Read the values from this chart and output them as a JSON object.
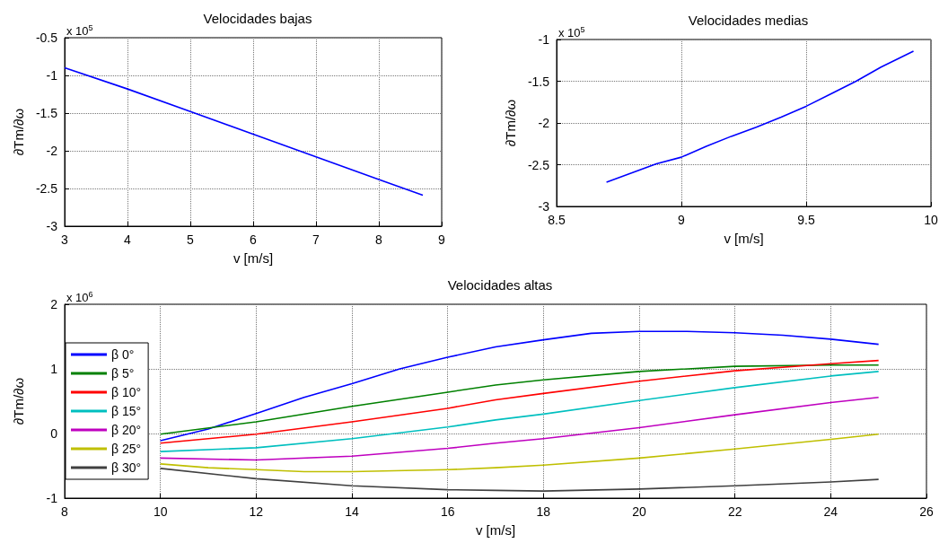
{
  "chart_data": [
    {
      "type": "line",
      "title": "Velocidades bajas",
      "xlabel": "v [m/s]",
      "ylabel": "∂Tm/∂ω",
      "annotations": [
        "x 10$^{5}$"
      ],
      "xlim": [
        3,
        9
      ],
      "xticks": [
        3,
        4,
        5,
        6,
        7,
        8,
        9
      ],
      "ylim": [
        -3,
        -0.5
      ],
      "yticks": [
        -3,
        -2.5,
        -2,
        -1.5,
        -1,
        -0.5
      ],
      "grid": true,
      "series": [
        {
          "color": "#0000ff",
          "x": [
            3,
            4,
            5,
            6,
            7,
            8,
            8.7
          ],
          "values": [
            -0.9,
            -1.18,
            -1.48,
            -1.78,
            -2.08,
            -2.38,
            -2.59
          ]
        }
      ]
    },
    {
      "type": "line",
      "title": "Velocidades medias",
      "xlabel": "v [m/s]",
      "ylabel": "∂Tm/∂ω",
      "annotations": [
        "x 10$^{5}$"
      ],
      "xlim": [
        8.5,
        10
      ],
      "xticks": [
        8.5,
        9,
        9.5,
        10
      ],
      "ylim": [
        -3,
        -1
      ],
      "yticks": [
        -3,
        -2.5,
        -2,
        -1.5,
        -1
      ],
      "grid": true,
      "series": [
        {
          "color": "#0000ff",
          "x": [
            8.7,
            8.9,
            9.0,
            9.1,
            9.2,
            9.3,
            9.4,
            9.5,
            9.6,
            9.7,
            9.8,
            9.93
          ],
          "values": [
            -2.71,
            -2.49,
            -2.41,
            -2.28,
            -2.16,
            -2.05,
            -1.93,
            -1.8,
            -1.65,
            -1.5,
            -1.33,
            -1.14
          ]
        }
      ]
    },
    {
      "type": "line",
      "title": "Velocidades altas",
      "xlabel": "v [m/s]",
      "ylabel": "∂Tm/∂ω",
      "annotations": [
        "x 10$^{6}$"
      ],
      "xlim": [
        8,
        26
      ],
      "xticks": [
        8,
        10,
        12,
        14,
        16,
        18,
        20,
        22,
        24,
        26
      ],
      "ylim": [
        -1,
        2
      ],
      "yticks": [
        -1,
        0,
        1,
        2
      ],
      "grid": true,
      "legend": "left",
      "x": [
        10,
        11,
        12,
        13,
        14,
        15,
        16,
        17,
        18,
        19,
        20,
        21,
        22,
        23,
        24,
        25
      ],
      "series": [
        {
          "name": "β 0°",
          "color": "#0000ff",
          "values": [
            -0.11,
            0.07,
            0.31,
            0.56,
            0.77,
            1.0,
            1.18,
            1.34,
            1.45,
            1.55,
            1.58,
            1.58,
            1.56,
            1.52,
            1.46,
            1.38
          ]
        },
        {
          "name": "β 5°",
          "color": "#008000",
          "x": [
            10,
            12,
            14,
            16,
            17,
            18,
            20,
            22,
            24,
            25
          ],
          "values": [
            -0.01,
            0.18,
            0.42,
            0.64,
            0.75,
            0.83,
            0.96,
            1.04,
            1.06,
            1.06
          ]
        },
        {
          "name": "β 10°",
          "color": "#ff0000",
          "x": [
            10,
            12,
            14,
            16,
            17,
            18,
            20,
            22,
            24,
            25
          ],
          "values": [
            -0.15,
            -0.01,
            0.18,
            0.39,
            0.52,
            0.62,
            0.81,
            0.97,
            1.08,
            1.13
          ]
        },
        {
          "name": "β 15°",
          "color": "#00bfbf",
          "x": [
            10,
            12,
            14,
            16,
            17,
            18,
            20,
            22,
            24,
            25
          ],
          "values": [
            -0.28,
            -0.22,
            -0.08,
            0.1,
            0.21,
            0.3,
            0.51,
            0.71,
            0.89,
            0.96
          ]
        },
        {
          "name": "β 20°",
          "color": "#bf00bf",
          "x": [
            10,
            12,
            14,
            16,
            17,
            18,
            20,
            22,
            24,
            25
          ],
          "values": [
            -0.38,
            -0.41,
            -0.35,
            -0.23,
            -0.15,
            -0.08,
            0.09,
            0.29,
            0.48,
            0.56
          ]
        },
        {
          "name": "β 25°",
          "color": "#bfbf00",
          "x": [
            10,
            11,
            12,
            13,
            14,
            16,
            17,
            18,
            20,
            22,
            24,
            25
          ],
          "values": [
            -0.47,
            -0.53,
            -0.56,
            -0.59,
            -0.59,
            -0.56,
            -0.53,
            -0.49,
            -0.38,
            -0.24,
            -0.09,
            -0.01
          ]
        },
        {
          "name": "β 30°",
          "color": "#404040",
          "x": [
            10,
            12,
            14,
            16,
            17,
            18,
            20,
            22,
            24,
            25
          ],
          "values": [
            -0.54,
            -0.7,
            -0.81,
            -0.87,
            -0.88,
            -0.89,
            -0.86,
            -0.81,
            -0.75,
            -0.71
          ]
        }
      ]
    }
  ]
}
